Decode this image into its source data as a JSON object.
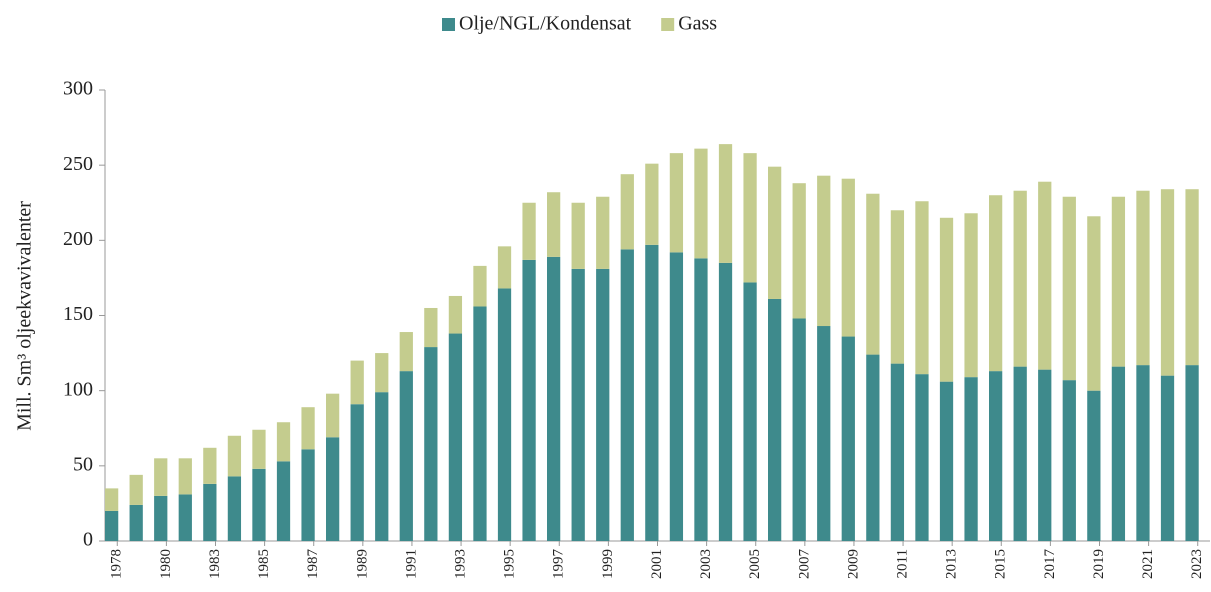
{
  "chart_data": {
    "type": "stacked_bar",
    "y_label": "Mill. Sm³ oljeekvavivalenter",
    "categories": [
      "1978",
      null,
      "1980",
      null,
      "1983",
      null,
      "1985",
      null,
      "1987",
      null,
      "1989",
      null,
      "1991",
      null,
      "1993",
      null,
      "1995",
      null,
      "1997",
      null,
      "1999",
      null,
      "2001",
      null,
      "2003",
      null,
      "2005",
      null,
      "2007",
      null,
      "2009",
      null,
      "2011",
      null,
      "2013",
      null,
      "2015",
      null,
      "2017",
      null,
      "2019",
      null,
      "2021",
      null,
      "2023"
    ],
    "series": [
      {
        "name": "Olje/NGL/Kondensat",
        "color": "#3e8a8c",
        "values": [
          20,
          24,
          30,
          31,
          38,
          43,
          48,
          53,
          61,
          69,
          91,
          99,
          113,
          129,
          138,
          156,
          168,
          187,
          189,
          181,
          181,
          194,
          197,
          192,
          188,
          185,
          172,
          161,
          148,
          143,
          136,
          124,
          118,
          111,
          106,
          109,
          113,
          116,
          114,
          107,
          100,
          116,
          117,
          110,
          117
        ]
      },
      {
        "name": "Gass",
        "color": "#c4cc8e",
        "values": [
          15,
          20,
          25,
          24,
          24,
          27,
          26,
          26,
          28,
          29,
          29,
          26,
          26,
          26,
          25,
          27,
          28,
          38,
          43,
          44,
          48,
          50,
          54,
          66,
          73,
          79,
          86,
          88,
          90,
          100,
          105,
          107,
          102,
          115,
          109,
          109,
          117,
          117,
          125,
          122,
          116,
          113,
          116,
          124,
          117
        ]
      }
    ],
    "ylim": [
      0,
      300
    ],
    "yticks": [
      0,
      50,
      100,
      150,
      200,
      250,
      300
    ],
    "legend": "top"
  }
}
